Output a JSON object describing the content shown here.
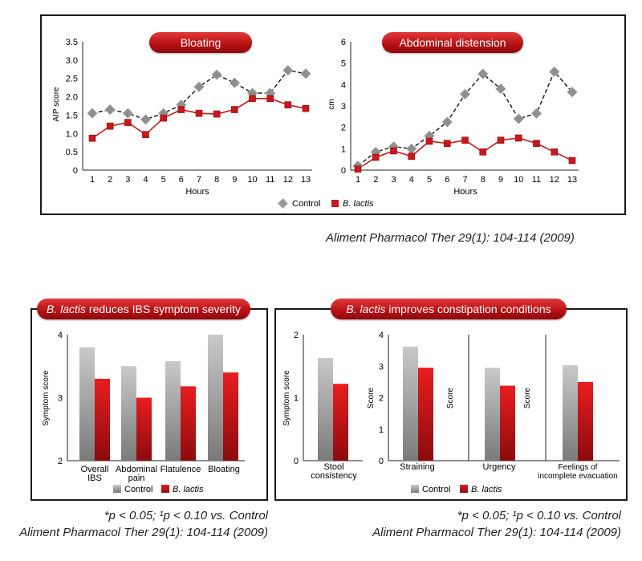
{
  "colors": {
    "control": "#999999",
    "blactis": "#c8181b",
    "line_dash": "#111111"
  },
  "chart_data": [
    {
      "type": "line",
      "title": "Bloating",
      "xlabel": "Hours",
      "ylabel": "AIP score",
      "x": [
        1,
        2,
        3,
        4,
        5,
        6,
        7,
        8,
        9,
        10,
        11,
        12,
        13
      ],
      "ylim": [
        0,
        3.5
      ],
      "yticks": [
        "0",
        "0.5",
        "1.0",
        "1.5",
        "2.0",
        "2.5",
        "3.0",
        "3.5"
      ],
      "series": [
        {
          "name": "Control",
          "values": [
            1.55,
            1.65,
            1.55,
            1.38,
            1.55,
            1.78,
            2.27,
            2.6,
            2.38,
            2.1,
            2.1,
            2.72,
            2.63
          ]
        },
        {
          "name": "B. lactis",
          "values": [
            0.87,
            1.2,
            1.3,
            0.97,
            1.42,
            1.65,
            1.55,
            1.53,
            1.65,
            1.95,
            1.95,
            1.78,
            1.68
          ]
        }
      ],
      "legend": "bottom"
    },
    {
      "type": "line",
      "title": "Abdominal distension",
      "xlabel": "Hours",
      "ylabel": "cm",
      "x": [
        1,
        2,
        3,
        4,
        5,
        6,
        7,
        8,
        9,
        10,
        11,
        12,
        13
      ],
      "ylim": [
        0,
        6
      ],
      "yticks": [
        "0",
        "1",
        "2",
        "3",
        "4",
        "5",
        "6"
      ],
      "series": [
        {
          "name": "Control",
          "values": [
            0.2,
            0.85,
            1.1,
            1.0,
            1.6,
            2.25,
            3.55,
            4.5,
            3.8,
            2.4,
            2.65,
            4.6,
            3.65
          ]
        },
        {
          "name": "B. lactis",
          "values": [
            0.05,
            0.6,
            0.9,
            0.65,
            1.35,
            1.25,
            1.4,
            0.85,
            1.4,
            1.5,
            1.25,
            0.85,
            0.45
          ]
        }
      ],
      "legend": "bottom"
    },
    {
      "type": "bar",
      "title": "B. lactis reduces IBS symptom severity",
      "ylabel": "Symptom score",
      "ylim": [
        2,
        4
      ],
      "yticks": [
        "2",
        "3",
        "4"
      ],
      "categories": [
        "Overall IBS",
        "Abdominal pain",
        "Flatulence",
        "Bloating"
      ],
      "series": [
        {
          "name": "Control",
          "values": [
            3.8,
            3.5,
            3.58,
            4.0
          ]
        },
        {
          "name": "B. lactis",
          "values": [
            3.3,
            3.0,
            3.18,
            3.4
          ]
        }
      ],
      "legend": "bottom"
    },
    {
      "type": "bar",
      "title": "B. lactis improves constipation conditions",
      "ylabel": "Symptom score",
      "ylim": [
        0,
        2
      ],
      "yticks": [
        "0",
        "1",
        "2"
      ],
      "categories": [
        "Stool consistency"
      ],
      "series": [
        {
          "name": "Control",
          "values": [
            1.63
          ]
        },
        {
          "name": "B. lactis",
          "values": [
            1.22
          ]
        }
      ]
    },
    {
      "type": "bar",
      "ylabel": "Score",
      "ylim": [
        0,
        4
      ],
      "yticks": [
        "0",
        "1",
        "2",
        "3",
        "4"
      ],
      "categories": [
        "Straining",
        "Urgency",
        "Feelings of incomplete evacuation"
      ],
      "series": [
        {
          "name": "Control",
          "values": [
            3.62,
            2.95,
            3.03
          ]
        },
        {
          "name": "B. lactis",
          "values": [
            2.95,
            2.38,
            2.5
          ]
        }
      ],
      "legend": "bottom"
    }
  ],
  "text": {
    "pill_top_left": "Bloating",
    "pill_top_right": "Abdominal distension",
    "pill_bl_italic": "B. lactis",
    "pill_bl_rest": " reduces IBS symptom severity",
    "pill_br_italic": "B. lactis",
    "pill_br_rest": " improves constipation conditions",
    "legend_control": "Control",
    "legend_blactis": "B. lactis",
    "citation": "Aliment Pharmacol Ther 29(1): 104-114 (2009)",
    "significance": "*p < 0.05; ¹p < 0.10 vs. Control",
    "score_label": "Score"
  },
  "bar_labels": {
    "overall": [
      "Overall",
      "IBS"
    ],
    "abdominal": [
      "Abdominal",
      "pain"
    ],
    "flatulence": [
      "Flatulence"
    ],
    "bloating": [
      "Bloating"
    ],
    "stool": [
      "Stool",
      "consistency"
    ],
    "straining": [
      "Straining"
    ],
    "urgency": [
      "Urgency"
    ],
    "feelings": [
      "Feelings of",
      "incomplete evacuation"
    ]
  }
}
